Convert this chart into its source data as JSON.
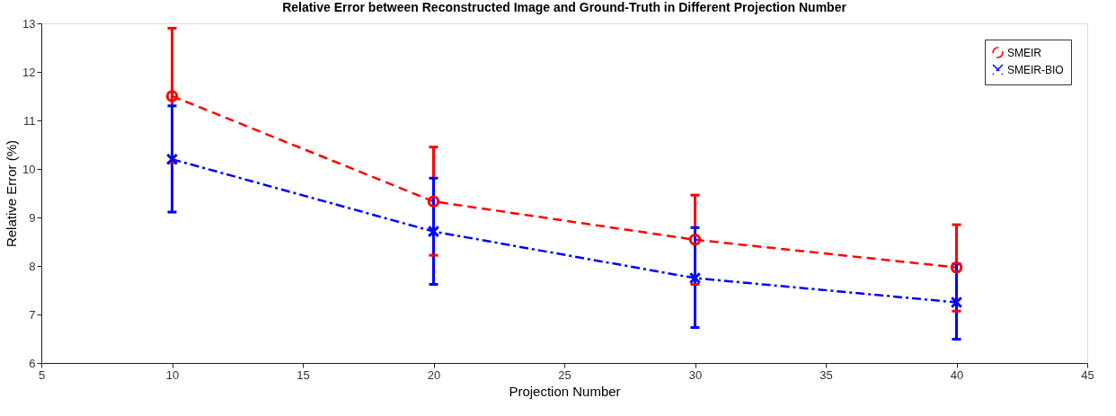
{
  "chart_data": {
    "type": "line",
    "title": "Relative Error between Reconstructed Image and Ground-Truth in Different Projection Number",
    "xlabel": "Projection Number",
    "ylabel": "Relative Error (%)",
    "x": [
      10,
      20,
      30,
      40
    ],
    "series": [
      {
        "name": "SMEIR",
        "color": "#ff0000",
        "marker": "circle",
        "line_style": "dashed",
        "values": [
          11.5,
          9.33,
          8.54,
          7.97
        ],
        "errors": [
          [
            10.13,
            12.9
          ],
          [
            8.22,
            10.45
          ],
          [
            7.62,
            9.46
          ],
          [
            7.07,
            8.85
          ]
        ]
      },
      {
        "name": "SMEIR-BIO",
        "color": "#0000ff",
        "marker": "cross",
        "line_style": "dashdot",
        "values": [
          10.2,
          8.71,
          7.75,
          7.25
        ],
        "errors": [
          [
            9.11,
            11.3
          ],
          [
            7.62,
            9.81
          ],
          [
            6.73,
            8.79
          ],
          [
            6.49,
            8.04
          ]
        ]
      }
    ],
    "xlim": [
      5,
      45
    ],
    "xticks": [
      5,
      10,
      15,
      20,
      25,
      30,
      35,
      40,
      45
    ],
    "ylim": [
      6,
      13
    ],
    "yticks": [
      6,
      7,
      8,
      9,
      10,
      11,
      12,
      13
    ],
    "grid": false,
    "legend": "top right"
  }
}
